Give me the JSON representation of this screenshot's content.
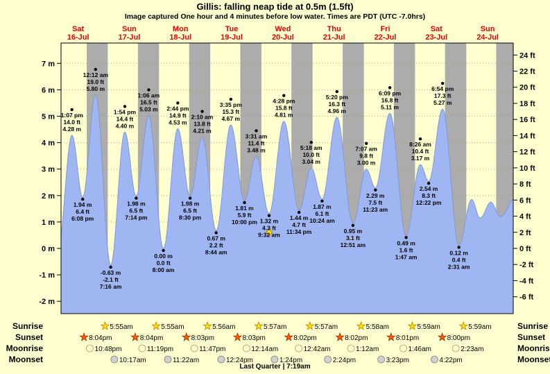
{
  "header": {
    "title": "Gillis: falling  neap tide at 0.5m (1.5ft)",
    "subtitle": "Image captured One hour and 4 minutes before low water. Times are PDT (UTC -7.0hrs)"
  },
  "colors": {
    "page_bg": "#FFFFD0",
    "night_band": "#ACACAC",
    "tide_fill": "#9FB6F2",
    "tide_stroke": "#7E99D6",
    "day_label": "#EE0000",
    "current_marker": "#FFD700"
  },
  "chart_data": {
    "type": "area",
    "x_axis": {
      "unit": "hours from Sat 16-Jul 00:00 PDT",
      "domain": [
        8,
        220
      ]
    },
    "y_axis_left": {
      "unit": "m",
      "ticks": [
        7,
        6,
        5,
        4,
        3,
        2,
        1,
        0,
        -1,
        -2
      ]
    },
    "y_axis_right": {
      "unit": "ft",
      "ticks": [
        24,
        22,
        20,
        18,
        16,
        14,
        12,
        10,
        8,
        6,
        4,
        2,
        0,
        -2,
        -4,
        -6
      ]
    },
    "days": [
      {
        "name": "Sat",
        "date": "16-Jul"
      },
      {
        "name": "Sun",
        "date": "17-Jul"
      },
      {
        "name": "Mon",
        "date": "18-Jul"
      },
      {
        "name": "Tue",
        "date": "19-Jul"
      },
      {
        "name": "Wed",
        "date": "20-Jul"
      },
      {
        "name": "Thu",
        "date": "21-Jul"
      },
      {
        "name": "Fri",
        "date": "22-Jul"
      },
      {
        "name": "Sat",
        "date": "23-Jul"
      },
      {
        "name": "Sun",
        "date": "24-Jul"
      }
    ],
    "night_bands": [
      [
        20.07,
        29.92
      ],
      [
        44.07,
        53.92
      ],
      [
        68.05,
        77.93
      ],
      [
        92.05,
        101.95
      ],
      [
        116.03,
        125.95
      ],
      [
        140.03,
        149.97
      ],
      [
        164.02,
        173.98
      ],
      [
        188.0,
        197.98
      ],
      [
        212.0,
        221.0
      ]
    ],
    "extremes": [
      {
        "hour": 13.117,
        "m": 4.28,
        "type": "high",
        "lines": [
          "1:07 pm",
          "14.0 ft",
          "4.28 m"
        ]
      },
      {
        "hour": 18.133,
        "m": 1.94,
        "type": "low",
        "lines": [
          "1.94 m",
          "6.4 ft",
          "6:08 pm"
        ]
      },
      {
        "hour": 24.2,
        "m": 5.8,
        "type": "high",
        "lines": [
          "12:12 am",
          "19.0 ft",
          "5.80 m"
        ]
      },
      {
        "hour": 31.267,
        "m": -0.63,
        "type": "low",
        "lines": [
          "-0.63 m",
          "-2.1 ft",
          "7:16 am"
        ]
      },
      {
        "hour": 37.9,
        "m": 4.4,
        "type": "high",
        "lines": [
          "1:54 pm",
          "14.4 ft",
          "4.40 m"
        ]
      },
      {
        "hour": 43.233,
        "m": 1.98,
        "type": "low",
        "lines": [
          "1.98 m",
          "6.5 ft",
          "7:14 pm"
        ]
      },
      {
        "hour": 49.1,
        "m": 5.03,
        "type": "high",
        "lines": [
          "1:06 am",
          "16.5 ft",
          "5.03 m"
        ]
      },
      {
        "hour": 56.0,
        "m": 0.0,
        "type": "low",
        "lines": [
          "0.00 m",
          "0.0 ft",
          "8:00 am"
        ]
      },
      {
        "hour": 62.733,
        "m": 4.53,
        "type": "high",
        "lines": [
          "2:44 pm",
          "14.9 ft",
          "4.53 m"
        ]
      },
      {
        "hour": 68.5,
        "m": 1.98,
        "type": "low",
        "lines": [
          "1.98 m",
          "6.5 ft",
          "8:30 pm"
        ]
      },
      {
        "hour": 74.167,
        "m": 4.21,
        "type": "high",
        "lines": [
          "2:10 am",
          "13.8 ft",
          "4.21 m"
        ]
      },
      {
        "hour": 80.733,
        "m": 0.67,
        "type": "low",
        "lines": [
          "0.67 m",
          "2.2 ft",
          "8:44 am"
        ]
      },
      {
        "hour": 87.583,
        "m": 4.67,
        "type": "high",
        "lines": [
          "3:35 pm",
          "15.3 ft",
          "4.67 m"
        ]
      },
      {
        "hour": 94.0,
        "m": 1.81,
        "type": "low",
        "lines": [
          "1.81 m",
          "5.9 ft",
          "10:00 pm"
        ]
      },
      {
        "hour": 99.517,
        "m": 3.48,
        "type": "high",
        "lines": [
          "3:31 am",
          "11.4 ft",
          "3.48 m"
        ]
      },
      {
        "hour": 105.533,
        "m": 1.32,
        "type": "low",
        "lines": [
          "1.32 m",
          "4.3 ft",
          "9:32 am"
        ],
        "current": true
      },
      {
        "hour": 112.467,
        "m": 4.81,
        "type": "high",
        "lines": [
          "4:28 pm",
          "15.8 ft",
          "4.81 m"
        ]
      },
      {
        "hour": 119.567,
        "m": 1.44,
        "type": "low",
        "lines": [
          "1.44 m",
          "4.7 ft",
          "11:34 pm"
        ]
      },
      {
        "hour": 125.3,
        "m": 3.04,
        "type": "high",
        "lines": [
          "5:18 am",
          "10.0 ft",
          "3.04 m"
        ]
      },
      {
        "hour": 130.4,
        "m": 1.87,
        "type": "low",
        "lines": [
          "1.87 m",
          "6.1 ft",
          "10:24 am"
        ]
      },
      {
        "hour": 137.333,
        "m": 4.96,
        "type": "high",
        "lines": [
          "5:20 pm",
          "16.3 ft",
          "4.96 m"
        ]
      },
      {
        "hour": 144.85,
        "m": 0.95,
        "type": "low",
        "lines": [
          "0.95 m",
          "3.1 ft",
          "12:51 am"
        ]
      },
      {
        "hour": 151.117,
        "m": 3.0,
        "type": "high",
        "lines": [
          "7:07 am",
          "9.8 ft",
          "3.00 m"
        ]
      },
      {
        "hour": 155.383,
        "m": 2.29,
        "type": "low",
        "lines": [
          "2.29 m",
          "7.5 ft",
          "11:23 am"
        ]
      },
      {
        "hour": 162.15,
        "m": 5.11,
        "type": "high",
        "lines": [
          "6:09 pm",
          "16.8 ft",
          "5.11 m"
        ]
      },
      {
        "hour": 169.783,
        "m": 0.49,
        "type": "low",
        "lines": [
          "0.49 m",
          "1.6 ft",
          "1:47 am"
        ]
      },
      {
        "hour": 176.433,
        "m": 3.17,
        "type": "high",
        "lines": [
          "8:26 am",
          "10.4 ft",
          "3.17 m"
        ]
      },
      {
        "hour": 180.367,
        "m": 2.54,
        "type": "low",
        "lines": [
          "2.54 m",
          "8.3 ft",
          "12:22 pm"
        ]
      },
      {
        "hour": 186.9,
        "m": 5.27,
        "type": "high",
        "lines": [
          "6:54 pm",
          "17.3 ft",
          "5.27 m"
        ]
      },
      {
        "hour": 194.517,
        "m": 0.12,
        "type": "low",
        "lines": [
          "0.12 m",
          "0.4 ft",
          "2:31 am"
        ]
      }
    ],
    "curve_edge_padding": {
      "lead": [
        [
          1.0,
          5.5
        ],
        [
          6.6,
          0.0
        ]
      ],
      "tail": [
        [
          200.5,
          1.85
        ],
        [
          204.5,
          1.15
        ],
        [
          209.5,
          1.75
        ],
        [
          214.0,
          1.2
        ],
        [
          221.0,
          1.9
        ]
      ]
    }
  },
  "almanac": {
    "rows": [
      {
        "key": "sunrise",
        "label": "Sunrise",
        "icon": "sunrise-star",
        "color": "#FFE000",
        "stroke": "#B8860B",
        "entries": [
          {
            "time": "5:55am",
            "hour": 29.917
          },
          {
            "time": "5:55am",
            "hour": 53.917
          },
          {
            "time": "5:56am",
            "hour": 77.933
          },
          {
            "time": "5:57am",
            "hour": 101.95
          },
          {
            "time": "5:57am",
            "hour": 125.95
          },
          {
            "time": "5:58am",
            "hour": 149.967
          },
          {
            "time": "5:59am",
            "hour": 173.983
          },
          {
            "time": "5:59am",
            "hour": 197.983
          }
        ]
      },
      {
        "key": "sunset",
        "label": "Sunset",
        "icon": "sunset-star",
        "color": "#FF5A00",
        "stroke": "#A03000",
        "entries": [
          {
            "time": "8:04pm",
            "hour": 20.067
          },
          {
            "time": "8:04pm",
            "hour": 44.067
          },
          {
            "time": "8:03pm",
            "hour": 68.05
          },
          {
            "time": "8:03pm",
            "hour": 92.05
          },
          {
            "time": "8:02pm",
            "hour": 116.033
          },
          {
            "time": "8:02pm",
            "hour": 140.033
          },
          {
            "time": "8:01pm",
            "hour": 164.017
          },
          {
            "time": "8:00pm",
            "hour": 188.0
          }
        ]
      },
      {
        "key": "moonrise",
        "label": "Moonrise",
        "icon": "moonrise-circle",
        "color": "#FFFFC8",
        "stroke": "#A0A080",
        "entries": [
          {
            "time": "10:48pm",
            "hour": 22.8
          },
          {
            "time": "11:19pm",
            "hour": 47.317
          },
          {
            "time": "11:47pm",
            "hour": 71.783
          },
          {
            "time": "12:14am",
            "hour": 96.233
          },
          {
            "time": "12:42am",
            "hour": 120.7
          },
          {
            "time": "1:12am",
            "hour": 145.2
          },
          {
            "time": "1:46am",
            "hour": 169.767
          },
          {
            "time": "2:23am",
            "hour": 194.383
          }
        ]
      },
      {
        "key": "moonset",
        "label": "Moonset",
        "icon": "moonset-circle",
        "color": "#D0D0D0",
        "stroke": "#808080",
        "entries": [
          {
            "time": "10:17am",
            "hour": 34.283
          },
          {
            "time": "11:22am",
            "hour": 59.367
          },
          {
            "time": "12:24pm",
            "hour": 84.4
          },
          {
            "time": "1:24pm",
            "hour": 109.4
          },
          {
            "time": "2:24pm",
            "hour": 134.4
          },
          {
            "time": "3:23pm",
            "hour": 159.383
          },
          {
            "time": "4:22pm",
            "hour": 184.367
          }
        ]
      }
    ],
    "footer": "Last Quarter | 7:19am"
  }
}
